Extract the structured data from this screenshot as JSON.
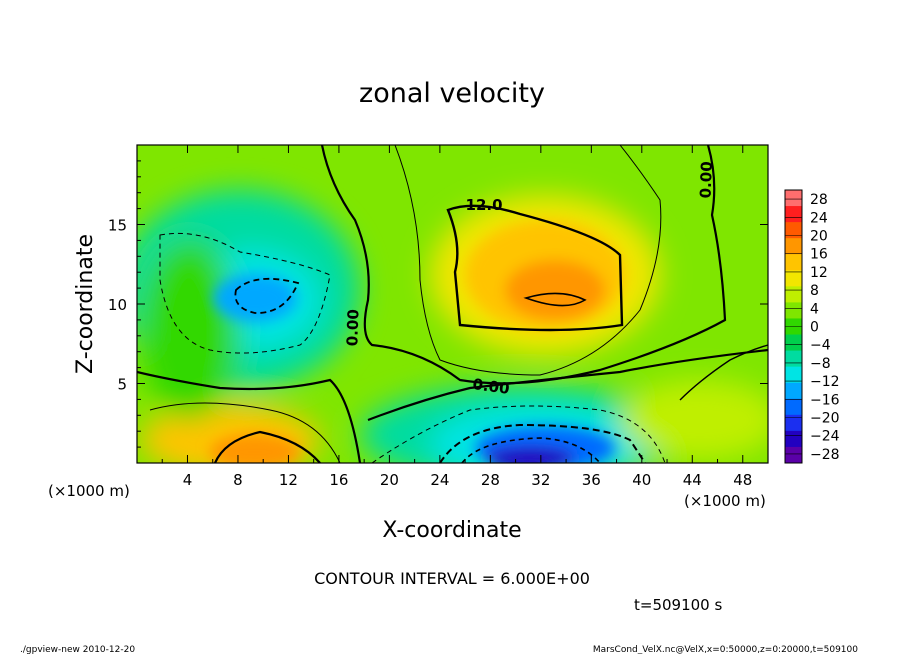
{
  "chart_data": {
    "type": "heatmap",
    "title": "zonal velocity",
    "xlabel": "X-coordinate",
    "ylabel": "Z-coordinate",
    "x_unit_label": "(×1000 m)",
    "x_unit_label_right": "(×1000 m)",
    "xlim": [
      0,
      50
    ],
    "ylim": [
      0,
      20
    ],
    "x_ticks": [
      4,
      8,
      12,
      16,
      20,
      24,
      28,
      32,
      36,
      40,
      44,
      48
    ],
    "x_tick_labels": [
      "4",
      "8",
      "12",
      "16",
      "20",
      "24",
      "28",
      "32",
      "36",
      "40",
      "44",
      "48"
    ],
    "y_ticks": [
      5,
      10,
      15
    ],
    "y_tick_labels": [
      "5",
      "10",
      "15"
    ],
    "colorbar": {
      "ticks": [
        28,
        24,
        20,
        16,
        12,
        8,
        4,
        0,
        -4,
        -8,
        -12,
        -16,
        -20,
        -24,
        -28
      ],
      "tick_labels": [
        "28",
        "24",
        "20",
        "16",
        "12",
        "8",
        "4",
        "0",
        "−4",
        "−8",
        "−12",
        "−16",
        "−20",
        "−24",
        "−28"
      ],
      "range": [
        -30,
        30
      ],
      "colors": [
        "#ff6e6e",
        "#ff1f1f",
        "#ff5a00",
        "#ff9600",
        "#ffc400",
        "#f2e600",
        "#bfef00",
        "#7fe600",
        "#30d800",
        "#00cf4c",
        "#00dca0",
        "#00e4e4",
        "#00a8ff",
        "#006aff",
        "#1b2ff0",
        "#2200c0",
        "#5a00a8"
      ]
    },
    "features": [
      {
        "kind": "max",
        "x": 33,
        "z": 10.5,
        "value": 16
      },
      {
        "kind": "max",
        "x": 10,
        "z": 1.0,
        "value": 14
      },
      {
        "kind": "min",
        "x": 32,
        "z": 0.5,
        "value": -22
      },
      {
        "kind": "min",
        "x": 10,
        "z": 10.5,
        "value": -10
      }
    ],
    "contour_labels": [
      {
        "text": "12.0",
        "x": 27.5,
        "z": 15.9,
        "rotate": 0
      },
      {
        "text": "0.00",
        "x": 28.0,
        "z": 4.5,
        "rotate": 8
      },
      {
        "text": "0.00",
        "x": 17.5,
        "z": 8.5,
        "rotate": -88
      },
      {
        "text": "0.00",
        "x": 45.5,
        "z": 17.8,
        "rotate": -88
      }
    ],
    "contour_interval_text": "CONTOUR INTERVAL = 6.000E+00",
    "time_text": "t=509100 s"
  },
  "footer": {
    "left": "./gpview-new  2010-12-20",
    "right": "MarsCond_VelX.nc@VelX,x=0:50000,z=0:20000,t=509100"
  }
}
